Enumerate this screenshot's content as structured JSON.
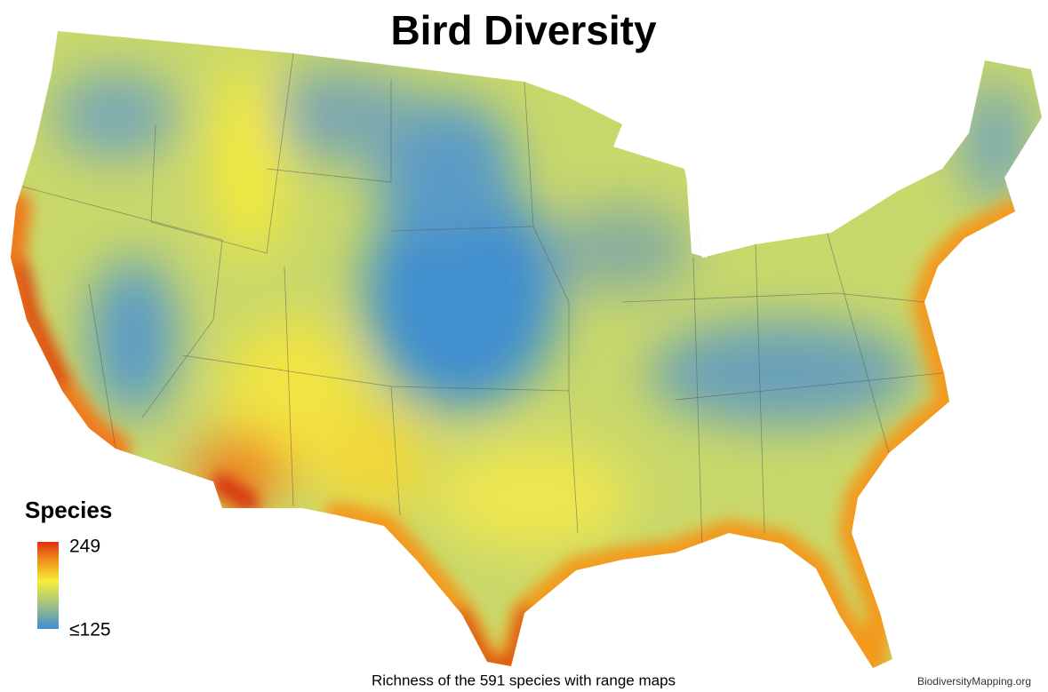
{
  "header": {
    "title": "Bird Diversity"
  },
  "legend": {
    "title": "Species",
    "max_label": "249",
    "min_label": "≤125"
  },
  "footer": {
    "caption": "Richness of the 591 species with range maps",
    "credit": "BiodiversityMapping.org"
  }
}
